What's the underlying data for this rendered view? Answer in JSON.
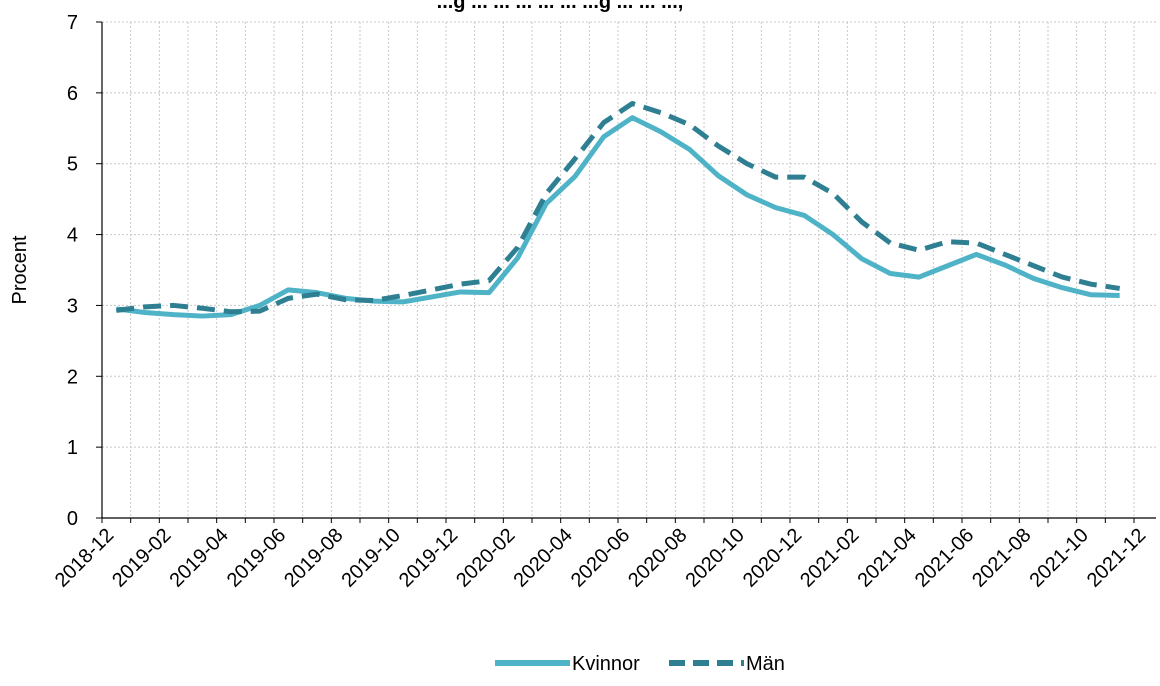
{
  "chart_data": {
    "type": "line",
    "title": "...g ... ... ... ... ... ...g ... ... ...,",
    "ylabel": "Procent",
    "xlabel": "",
    "ylim": [
      0,
      7
    ],
    "yticks": [
      "0",
      "1",
      "2",
      "3",
      "4",
      "5",
      "6",
      "7"
    ],
    "xticks": [
      "2018-12",
      "2019-02",
      "2019-04",
      "2019-06",
      "2019-08",
      "2019-10",
      "2019-12",
      "2020-02",
      "2020-04",
      "2020-06",
      "2020-08",
      "2020-10",
      "2020-12",
      "2021-02",
      "2021-04",
      "2021-06",
      "2021-08",
      "2021-10",
      "2021-12"
    ],
    "x": [
      "2019-01",
      "2019-02",
      "2019-03",
      "2019-04",
      "2019-05",
      "2019-06",
      "2019-07",
      "2019-08",
      "2019-09",
      "2019-10",
      "2019-11",
      "2019-12",
      "2020-01",
      "2020-02",
      "2020-03",
      "2020-04",
      "2020-05",
      "2020-06",
      "2020-07",
      "2020-08",
      "2020-09",
      "2020-10",
      "2020-11",
      "2020-12",
      "2021-01",
      "2021-02",
      "2021-03",
      "2021-04",
      "2021-05",
      "2021-06",
      "2021-07",
      "2021-08",
      "2021-09",
      "2021-10",
      "2021-11",
      "2021-12"
    ],
    "grid": true,
    "legend_position": "bottom",
    "series": [
      {
        "name": "Kvinnor",
        "color": "#4fb3c8",
        "style": "solid",
        "values": [
          2.95,
          2.9,
          2.87,
          2.85,
          2.87,
          3.0,
          3.22,
          3.18,
          3.1,
          3.06,
          3.05,
          3.12,
          3.19,
          3.18,
          3.67,
          4.44,
          4.82,
          5.38,
          5.65,
          5.45,
          5.2,
          4.83,
          4.56,
          4.38,
          4.27,
          4.0,
          3.66,
          3.45,
          3.4,
          3.56,
          3.72,
          3.57,
          3.38,
          3.25,
          3.15,
          3.14
        ]
      },
      {
        "name": "Män",
        "color": "#2f7f92",
        "style": "dashed",
        "values": [
          2.93,
          2.98,
          3.0,
          2.96,
          2.91,
          2.92,
          3.1,
          3.16,
          3.08,
          3.07,
          3.14,
          3.22,
          3.3,
          3.35,
          3.82,
          4.58,
          5.07,
          5.58,
          5.85,
          5.72,
          5.55,
          5.25,
          5.0,
          4.81,
          4.81,
          4.58,
          4.18,
          3.88,
          3.78,
          3.9,
          3.88,
          3.72,
          3.56,
          3.4,
          3.3,
          3.24
        ]
      }
    ]
  }
}
